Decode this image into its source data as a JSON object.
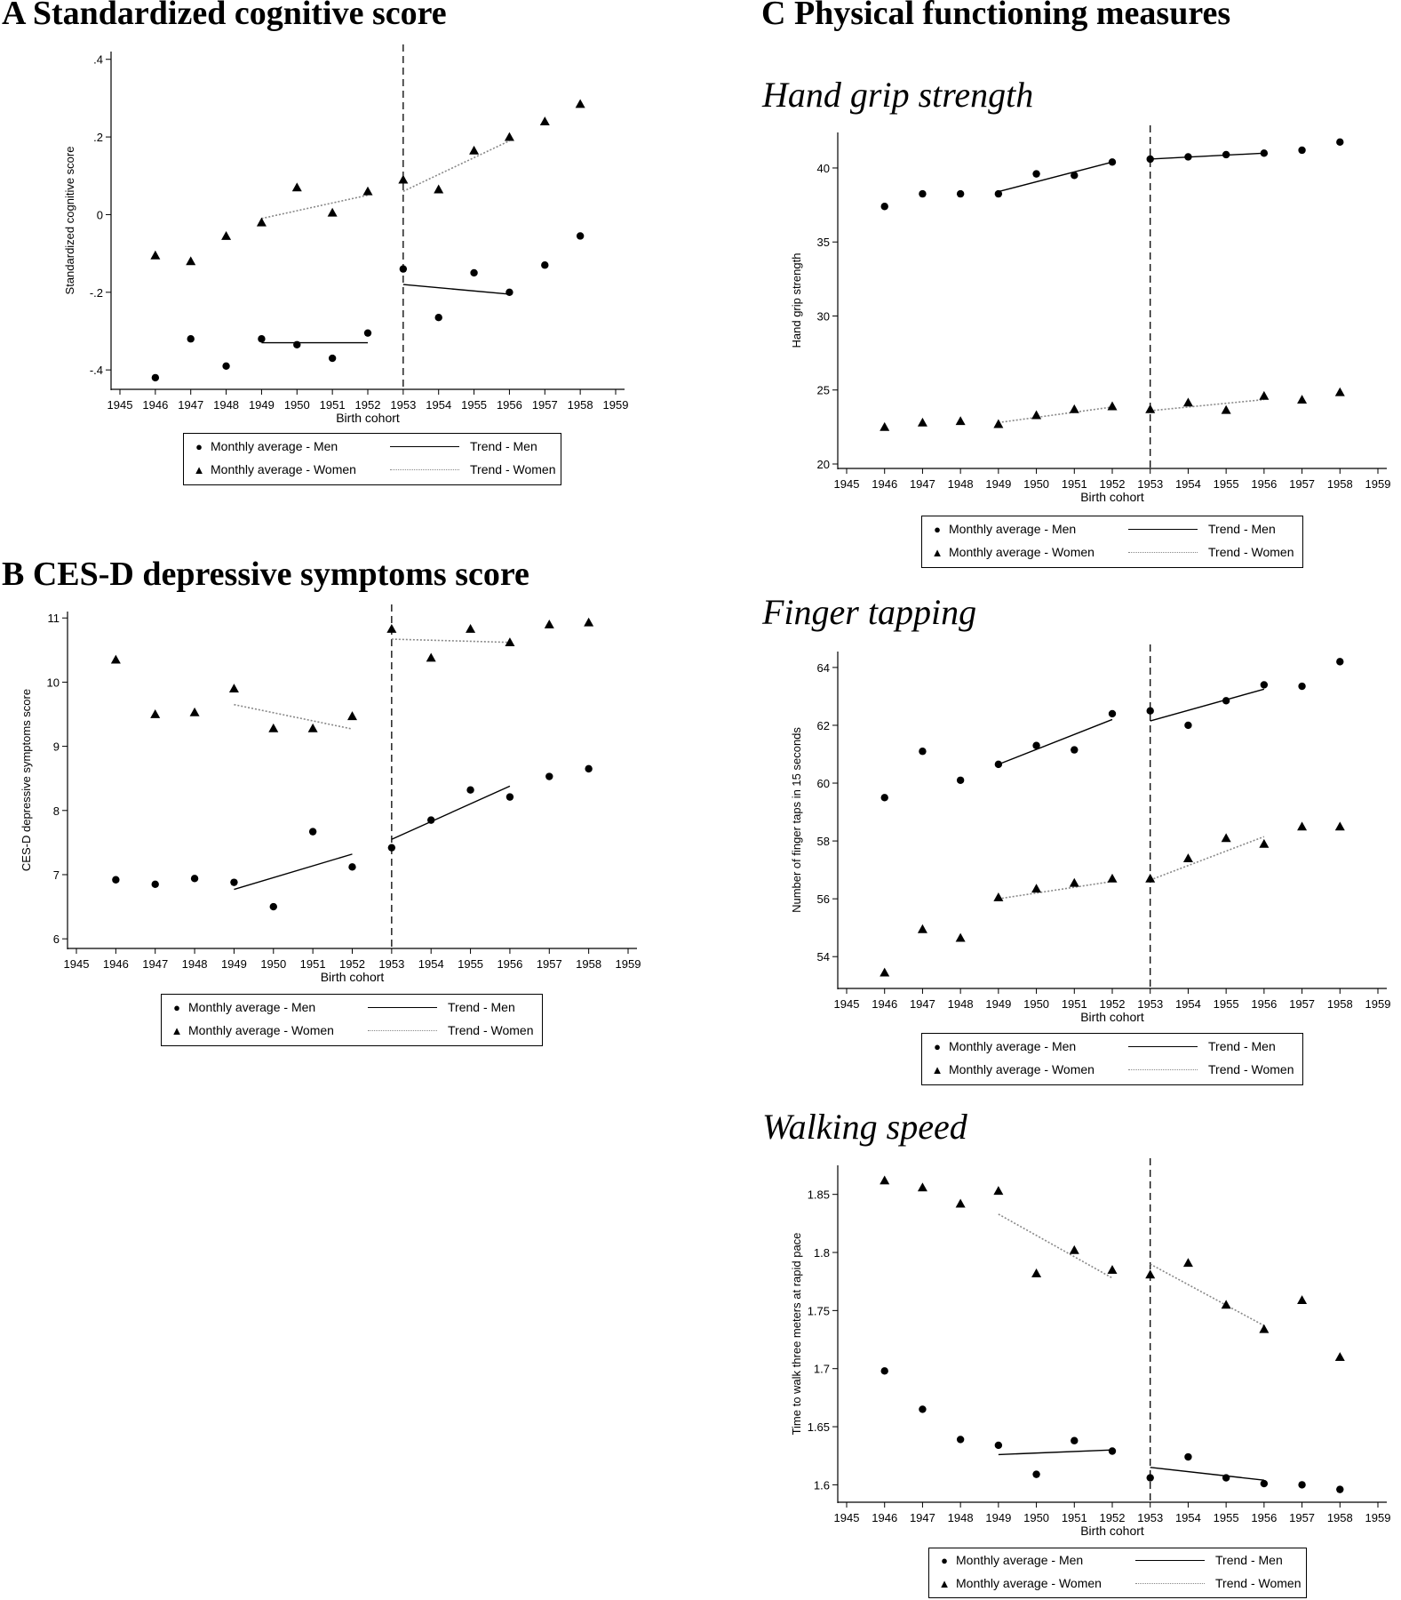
{
  "panels": {
    "A": {
      "title": "A Standardized cognitive score"
    },
    "B": {
      "title": "B CES-D depressive symptoms score"
    },
    "C": {
      "title": "C Physical functioning measures",
      "subtitles": [
        "Hand grip strength",
        "Finger tapping",
        "Walking speed"
      ]
    }
  },
  "legend": {
    "men_avg": "Monthly average - Men",
    "women_avg": "Monthly average - Women",
    "trend_men": "Trend - Men",
    "trend_women": "Trend - Women"
  },
  "chart_data": [
    {
      "id": "cog",
      "type": "scatter",
      "xlabel": "Birth cohort",
      "ylabel": "Standardized cognitive score",
      "xlim": [
        1945,
        1959
      ],
      "ylim": [
        -0.45,
        0.42
      ],
      "xticks": [
        1945,
        1946,
        1947,
        1948,
        1949,
        1950,
        1951,
        1952,
        1953,
        1954,
        1955,
        1956,
        1957,
        1958,
        1959
      ],
      "yticks": [
        {
          "v": 0.4,
          "l": ".4"
        },
        {
          "v": 0.2,
          "l": ".2"
        },
        {
          "v": 0,
          "l": "0"
        },
        {
          "v": -0.2,
          "l": "-.2"
        },
        {
          "v": -0.4,
          "l": "-.4"
        }
      ],
      "cutoff": 1953,
      "series": [
        {
          "name": "Monthly average - Men",
          "marker": "circle",
          "x": [
            1946,
            1947,
            1948,
            1949,
            1950,
            1951,
            1952,
            1953,
            1954,
            1955,
            1956,
            1957,
            1958
          ],
          "y": [
            -0.42,
            -0.32,
            -0.39,
            -0.32,
            -0.335,
            -0.37,
            -0.305,
            -0.14,
            -0.265,
            -0.15,
            -0.2,
            -0.13,
            -0.055
          ]
        },
        {
          "name": "Monthly average - Women",
          "marker": "triangle",
          "x": [
            1946,
            1947,
            1948,
            1949,
            1950,
            1951,
            1952,
            1953,
            1954,
            1955,
            1956,
            1957,
            1958
          ],
          "y": [
            -0.105,
            -0.12,
            -0.055,
            -0.02,
            0.07,
            0.005,
            0.06,
            0.09,
            0.065,
            0.165,
            0.2,
            0.24,
            0.285
          ]
        }
      ],
      "trends": [
        {
          "name": "Trend - Men",
          "style": "solid",
          "x": [
            1949,
            1952
          ],
          "y": [
            -0.33,
            -0.33
          ]
        },
        {
          "name": "Trend - Men",
          "style": "solid",
          "x": [
            1953,
            1956
          ],
          "y": [
            -0.18,
            -0.205
          ]
        },
        {
          "name": "Trend - Women",
          "style": "dotted",
          "x": [
            1949,
            1952
          ],
          "y": [
            -0.01,
            0.05
          ]
        },
        {
          "name": "Trend - Women",
          "style": "dotted",
          "x": [
            1953,
            1956
          ],
          "y": [
            0.06,
            0.19
          ]
        }
      ]
    },
    {
      "id": "cesd",
      "type": "scatter",
      "xlabel": "Birth cohort",
      "ylabel": "CES-D depressive symptoms score",
      "xlim": [
        1945,
        1959
      ],
      "ylim": [
        5.85,
        11.1
      ],
      "xticks": [
        1945,
        1946,
        1947,
        1948,
        1949,
        1950,
        1951,
        1952,
        1953,
        1954,
        1955,
        1956,
        1957,
        1958,
        1959
      ],
      "yticks": [
        {
          "v": 11,
          "l": "11"
        },
        {
          "v": 10,
          "l": "10"
        },
        {
          "v": 9,
          "l": "9"
        },
        {
          "v": 8,
          "l": "8"
        },
        {
          "v": 7,
          "l": "7"
        },
        {
          "v": 6,
          "l": "6"
        }
      ],
      "cutoff": 1953,
      "series": [
        {
          "name": "Monthly average - Men",
          "marker": "circle",
          "x": [
            1946,
            1947,
            1948,
            1949,
            1950,
            1951,
            1952,
            1953,
            1954,
            1955,
            1956,
            1957,
            1958
          ],
          "y": [
            6.92,
            6.85,
            6.94,
            6.88,
            6.5,
            7.67,
            7.12,
            7.42,
            7.85,
            8.32,
            8.21,
            8.53,
            8.65
          ]
        },
        {
          "name": "Monthly average - Women",
          "marker": "triangle",
          "x": [
            1946,
            1947,
            1948,
            1949,
            1950,
            1951,
            1952,
            1953,
            1954,
            1955,
            1956,
            1957,
            1958
          ],
          "y": [
            10.35,
            9.5,
            9.53,
            9.9,
            9.28,
            9.28,
            9.47,
            10.83,
            10.38,
            10.83,
            10.62,
            10.9,
            10.93
          ]
        }
      ],
      "trends": [
        {
          "name": "Trend - Men",
          "style": "solid",
          "x": [
            1949,
            1952
          ],
          "y": [
            6.77,
            7.32
          ]
        },
        {
          "name": "Trend - Men",
          "style": "solid",
          "x": [
            1953,
            1956
          ],
          "y": [
            7.55,
            8.38
          ]
        },
        {
          "name": "Trend - Women",
          "style": "dotted",
          "x": [
            1949,
            1952
          ],
          "y": [
            9.65,
            9.27
          ]
        },
        {
          "name": "Trend - Women",
          "style": "dotted",
          "x": [
            1953,
            1956
          ],
          "y": [
            10.67,
            10.62
          ]
        }
      ]
    },
    {
      "id": "grip",
      "type": "scatter",
      "xlabel": "Birth cohort",
      "ylabel": "Hand grip strength",
      "xlim": [
        1945,
        1959
      ],
      "ylim": [
        19.7,
        42.4
      ],
      "xticks": [
        1945,
        1946,
        1947,
        1948,
        1949,
        1950,
        1951,
        1952,
        1953,
        1954,
        1955,
        1956,
        1957,
        1958,
        1959
      ],
      "yticks": [
        {
          "v": 40,
          "l": "40"
        },
        {
          "v": 35,
          "l": "35"
        },
        {
          "v": 30,
          "l": "30"
        },
        {
          "v": 25,
          "l": "25"
        },
        {
          "v": 20,
          "l": "20"
        }
      ],
      "cutoff": 1953,
      "series": [
        {
          "name": "Monthly average - Men",
          "marker": "circle",
          "x": [
            1946,
            1947,
            1948,
            1949,
            1950,
            1951,
            1952,
            1953,
            1954,
            1955,
            1956,
            1957,
            1958
          ],
          "y": [
            37.4,
            38.25,
            38.25,
            38.25,
            39.6,
            39.5,
            40.4,
            40.6,
            40.75,
            40.9,
            41.0,
            41.2,
            41.75
          ]
        },
        {
          "name": "Monthly average - Women",
          "marker": "triangle",
          "x": [
            1946,
            1947,
            1948,
            1949,
            1950,
            1951,
            1952,
            1953,
            1954,
            1955,
            1956,
            1957,
            1958
          ],
          "y": [
            22.5,
            22.8,
            22.9,
            22.7,
            23.3,
            23.7,
            23.9,
            23.7,
            24.15,
            23.65,
            24.6,
            24.35,
            24.85
          ]
        }
      ],
      "trends": [
        {
          "name": "Trend - Men",
          "style": "solid",
          "x": [
            1949,
            1952
          ],
          "y": [
            38.4,
            40.4
          ]
        },
        {
          "name": "Trend - Men",
          "style": "solid",
          "x": [
            1953,
            1956
          ],
          "y": [
            40.6,
            41.0
          ]
        },
        {
          "name": "Trend - Women",
          "style": "dotted",
          "x": [
            1949,
            1952
          ],
          "y": [
            22.8,
            23.85
          ]
        },
        {
          "name": "Trend - Women",
          "style": "dotted",
          "x": [
            1953,
            1956
          ],
          "y": [
            23.6,
            24.35
          ]
        }
      ]
    },
    {
      "id": "tap",
      "type": "scatter",
      "xlabel": "Birth cohort",
      "ylabel": "Number of finger taps in 15 seconds",
      "xlim": [
        1945,
        1959
      ],
      "ylim": [
        52.9,
        64.55
      ],
      "xticks": [
        1945,
        1946,
        1947,
        1948,
        1949,
        1950,
        1951,
        1952,
        1953,
        1954,
        1955,
        1956,
        1957,
        1958,
        1959
      ],
      "yticks": [
        {
          "v": 64,
          "l": "64"
        },
        {
          "v": 62,
          "l": "62"
        },
        {
          "v": 60,
          "l": "60"
        },
        {
          "v": 58,
          "l": "58"
        },
        {
          "v": 56,
          "l": "56"
        },
        {
          "v": 54,
          "l": "54"
        }
      ],
      "cutoff": 1953,
      "series": [
        {
          "name": "Monthly average - Men",
          "marker": "circle",
          "x": [
            1946,
            1947,
            1948,
            1949,
            1950,
            1951,
            1952,
            1953,
            1954,
            1955,
            1956,
            1957,
            1958
          ],
          "y": [
            59.5,
            61.1,
            60.1,
            60.65,
            61.3,
            61.15,
            62.4,
            62.5,
            62.0,
            62.85,
            63.4,
            63.35,
            64.2
          ]
        },
        {
          "name": "Monthly average - Women",
          "marker": "triangle",
          "x": [
            1946,
            1947,
            1948,
            1949,
            1950,
            1951,
            1952,
            1953,
            1954,
            1955,
            1956,
            1957,
            1958
          ],
          "y": [
            53.45,
            54.95,
            54.65,
            56.05,
            56.35,
            56.55,
            56.7,
            56.7,
            57.4,
            58.1,
            57.9,
            58.5,
            58.5
          ]
        }
      ],
      "trends": [
        {
          "name": "Trend - Men",
          "style": "solid",
          "x": [
            1949,
            1952
          ],
          "y": [
            60.65,
            62.2
          ]
        },
        {
          "name": "Trend - Men",
          "style": "solid",
          "x": [
            1953,
            1956
          ],
          "y": [
            62.15,
            63.25
          ]
        },
        {
          "name": "Trend - Women",
          "style": "dotted",
          "x": [
            1949,
            1952
          ],
          "y": [
            56.0,
            56.6
          ]
        },
        {
          "name": "Trend - Women",
          "style": "dotted",
          "x": [
            1953,
            1956
          ],
          "y": [
            56.65,
            58.15
          ]
        }
      ]
    },
    {
      "id": "walk",
      "type": "scatter",
      "xlabel": "Birth cohort",
      "ylabel": "Time to walk three meters at rapid pace",
      "xlim": [
        1945,
        1959
      ],
      "ylim": [
        1.585,
        1.875
      ],
      "xticks": [
        1945,
        1946,
        1947,
        1948,
        1949,
        1950,
        1951,
        1952,
        1953,
        1954,
        1955,
        1956,
        1957,
        1958,
        1959
      ],
      "yticks": [
        {
          "v": 1.85,
          "l": "1.85"
        },
        {
          "v": 1.8,
          "l": "1.8"
        },
        {
          "v": 1.75,
          "l": "1.75"
        },
        {
          "v": 1.7,
          "l": "1.7"
        },
        {
          "v": 1.65,
          "l": "1.65"
        },
        {
          "v": 1.6,
          "l": "1.6"
        }
      ],
      "cutoff": 1953,
      "series": [
        {
          "name": "Monthly average - Men",
          "marker": "circle",
          "x": [
            1946,
            1947,
            1948,
            1949,
            1950,
            1951,
            1952,
            1953,
            1954,
            1955,
            1956,
            1957,
            1958
          ],
          "y": [
            1.698,
            1.665,
            1.639,
            1.634,
            1.609,
            1.638,
            1.629,
            1.606,
            1.624,
            1.606,
            1.601,
            1.6,
            1.596
          ]
        },
        {
          "name": "Monthly average - Women",
          "marker": "triangle",
          "x": [
            1946,
            1947,
            1948,
            1949,
            1950,
            1951,
            1952,
            1953,
            1954,
            1955,
            1956,
            1957,
            1958
          ],
          "y": [
            1.862,
            1.856,
            1.842,
            1.853,
            1.782,
            1.802,
            1.785,
            1.781,
            1.791,
            1.755,
            1.734,
            1.759,
            1.71
          ]
        }
      ],
      "trends": [
        {
          "name": "Trend - Men",
          "style": "solid",
          "x": [
            1949,
            1952
          ],
          "y": [
            1.626,
            1.63
          ]
        },
        {
          "name": "Trend - Men",
          "style": "solid",
          "x": [
            1953,
            1956
          ],
          "y": [
            1.615,
            1.604
          ]
        },
        {
          "name": "Trend - Women",
          "style": "dotted",
          "x": [
            1949,
            1952
          ],
          "y": [
            1.833,
            1.778
          ]
        },
        {
          "name": "Trend - Women",
          "style": "dotted",
          "x": [
            1953,
            1956
          ],
          "y": [
            1.79,
            1.737
          ]
        }
      ]
    }
  ]
}
